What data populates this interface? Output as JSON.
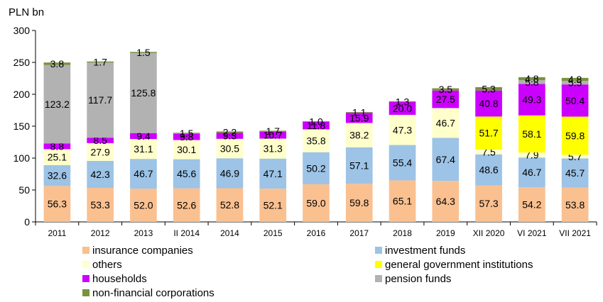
{
  "chart_data": {
    "type": "bar",
    "stacked": true,
    "ylabel": "PLN bn",
    "ylim": [
      0,
      300
    ],
    "yticks": [
      0,
      50,
      100,
      150,
      200,
      250,
      300
    ],
    "grid": false,
    "legend_position": "bottom",
    "categories": [
      "2011",
      "2012",
      "2013",
      "II 2014",
      "2014",
      "2015",
      "2016",
      "2017",
      "2018",
      "2019",
      "XII 2020",
      "VI 2021",
      "VII 2021"
    ],
    "series": [
      {
        "name": "insurance companies",
        "color": "#fac090",
        "values": [
          56.3,
          53.3,
          52.0,
          52.6,
          52.8,
          52.1,
          59.0,
          59.8,
          65.1,
          64.3,
          57.3,
          54.2,
          53.8
        ]
      },
      {
        "name": "investment funds",
        "color": "#9dc3e6",
        "values": [
          32.6,
          42.3,
          46.7,
          45.6,
          46.9,
          47.1,
          50.2,
          57.1,
          55.4,
          67.4,
          48.6,
          46.7,
          45.7
        ]
      },
      {
        "name": "others",
        "color": "#ffffcc",
        "values": [
          25.1,
          27.9,
          31.1,
          30.1,
          30.5,
          31.3,
          35.8,
          38.2,
          47.3,
          46.7,
          7.5,
          7.9,
          5.7
        ]
      },
      {
        "name": "general government institutions",
        "color": "#ffff00",
        "values": [
          0,
          0,
          0,
          0,
          0,
          0,
          0,
          0,
          0,
          0,
          51.7,
          58.1,
          59.8
        ]
      },
      {
        "name": "households",
        "color": "#cc00ff",
        "values": [
          8.8,
          8.5,
          9.4,
          9.8,
          9.3,
          10.7,
          11.8,
          15.9,
          20.0,
          27.5,
          40.8,
          49.3,
          50.4
        ]
      },
      {
        "name": "pension funds",
        "color": "#b2b2b2",
        "values": [
          123.2,
          117.7,
          125.8,
          0,
          0,
          0,
          0,
          0,
          0,
          0,
          0,
          5.8,
          5.5
        ]
      },
      {
        "name": "non-financial corporations",
        "color": "#77933c",
        "values": [
          3.8,
          1.7,
          1.5,
          1.5,
          2.2,
          1.7,
          1.0,
          1.1,
          1.3,
          3.5,
          5.3,
          4.8,
          4.8
        ]
      }
    ]
  }
}
